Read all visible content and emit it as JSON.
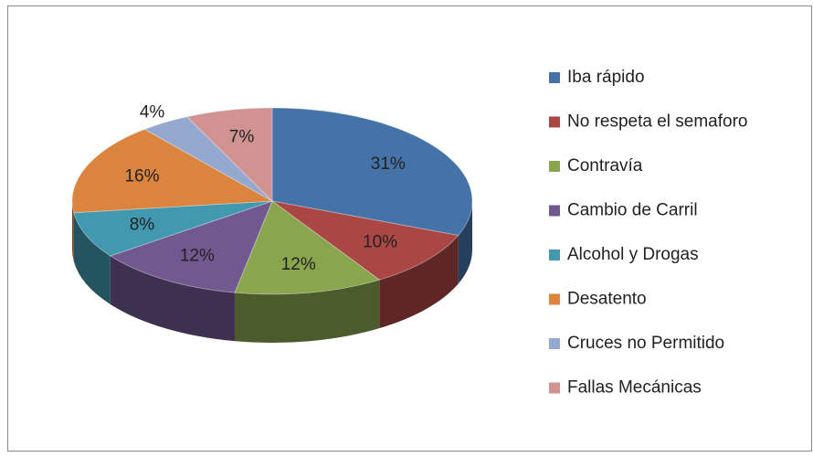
{
  "chart_data": {
    "type": "pie",
    "categories": [
      "Iba rápido",
      "No respeta el semaforo",
      "Contravía",
      "Cambio de Carril",
      "Alcohol y Drogas",
      "Desatento",
      "Cruces no Permitido",
      "Fallas Mecánicas"
    ],
    "values": [
      31,
      10,
      12,
      12,
      8,
      16,
      4,
      7
    ],
    "value_labels": [
      "31%",
      "10%",
      "12%",
      "12%",
      "8%",
      "16%",
      "4%",
      "7%"
    ],
    "colors": [
      "#4572a7",
      "#aa4643",
      "#89a54e",
      "#71588f",
      "#4198af",
      "#db843d",
      "#93a9cf",
      "#d19392"
    ],
    "legend": "right"
  }
}
